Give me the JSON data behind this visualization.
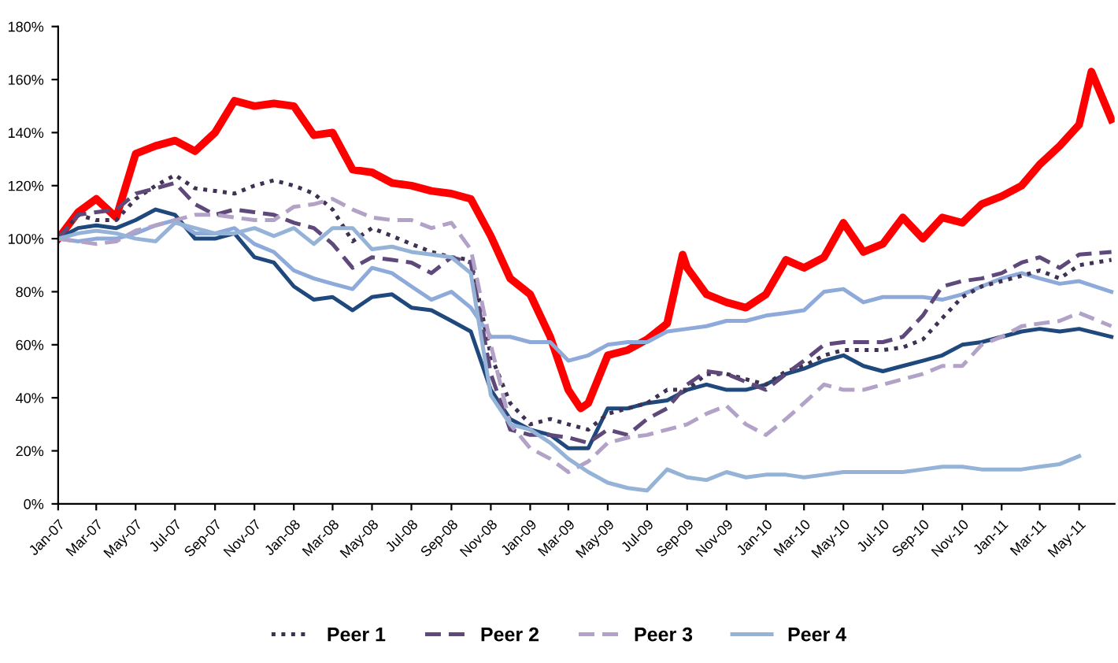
{
  "chart_data": {
    "type": "line",
    "x": [
      "2007-01",
      "2007-02",
      "2007-03",
      "2007-04",
      "2007-05",
      "2007-06",
      "2007-07",
      "2007-08",
      "2007-09",
      "2007-10",
      "2007-11",
      "2007-12",
      "2008-01",
      "2008-02",
      "2008-03",
      "2008-04",
      "2008-05",
      "2008-06",
      "2008-07",
      "2008-08",
      "2008-09",
      "2008-10",
      "2008-11",
      "2008-12",
      "2009-01",
      "2009-02",
      "2009-03",
      "2009-04",
      "2009-05",
      "2009-06",
      "2009-07",
      "2009-08",
      "2009-09",
      "2009-10",
      "2009-11",
      "2009-12",
      "2010-01",
      "2010-02",
      "2010-03",
      "2010-04",
      "2010-05",
      "2010-06",
      "2010-07",
      "2010-08",
      "2010-09",
      "2010-10",
      "2010-11",
      "2010-12",
      "2011-01",
      "2011-02",
      "2011-03",
      "2011-04",
      "2011-05",
      "2011-06-20"
    ],
    "series": [
      {
        "color": "#ff0000",
        "line_style": "solid",
        "x": [
          "2007-01",
          "2007-02",
          "2007-03",
          "2007-04",
          "2007-05",
          "2007-06",
          "2007-07",
          "2007-08",
          "2007-09",
          "2007-10",
          "2007-11",
          "2007-12",
          "2008-01",
          "2008-02",
          "2008-03",
          "2008-04",
          "2008-05",
          "2008-06",
          "2008-07",
          "2008-08",
          "2008-09",
          "2008-10",
          "2008-11",
          "2008-12",
          "2009-01",
          "2009-02",
          "2009-03",
          "2009-03-20",
          "2009-04",
          "2009-05",
          "2009-06",
          "2009-07",
          "2009-08",
          "2009-08-25",
          "2009-09",
          "2009-10",
          "2009-11",
          "2009-12",
          "2010-01",
          "2010-02",
          "2010-03",
          "2010-04",
          "2010-05",
          "2010-06",
          "2010-07",
          "2010-08",
          "2010-09",
          "2010-10",
          "2010-11",
          "2010-12",
          "2011-01",
          "2011-02",
          "2011-03",
          "2011-04",
          "2011-05",
          "2011-05-20",
          "2011-06-20"
        ],
        "values": [
          100,
          110,
          115,
          108,
          132,
          135,
          137,
          133,
          140,
          152,
          150,
          151,
          150,
          139,
          140,
          126,
          125,
          121,
          120,
          118,
          117,
          115,
          101,
          85,
          79,
          63,
          43,
          36,
          38,
          56,
          58,
          62,
          68,
          94,
          89,
          79,
          76,
          74,
          79,
          92,
          89,
          93,
          106,
          95,
          98,
          108,
          100,
          108,
          106,
          113,
          116,
          120,
          128,
          135,
          143,
          163,
          145
        ]
      },
      {
        "color": "#1f497d",
        "line_style": "solid",
        "values": [
          100,
          104,
          105,
          104,
          107,
          111,
          109,
          100,
          100,
          102,
          93,
          91,
          82,
          77,
          78,
          73,
          78,
          79,
          74,
          73,
          69,
          65,
          43,
          32,
          28,
          26,
          21,
          21,
          36,
          36,
          38,
          39,
          43,
          45,
          43,
          43,
          45,
          49,
          51,
          54,
          56,
          52,
          50,
          52,
          54,
          56,
          60,
          61,
          63,
          65,
          66,
          65,
          66,
          63
        ]
      },
      {
        "color": "#8eaadb",
        "line_style": "solid",
        "values": [
          100,
          99,
          100,
          100,
          102,
          105,
          107,
          102,
          102,
          104,
          98,
          95,
          88,
          85,
          83,
          81,
          89,
          87,
          82,
          77,
          80,
          74,
          63,
          63,
          61,
          61,
          54,
          56,
          60,
          61,
          61,
          65,
          66,
          67,
          69,
          69,
          71,
          72,
          73,
          80,
          81,
          76,
          78,
          78,
          78,
          77,
          79,
          82,
          85,
          87,
          85,
          83,
          84,
          80
        ]
      },
      {
        "name": "Peer 1",
        "color": "#3f3151",
        "line_style": "dotted",
        "values": [
          100,
          109,
          107,
          107,
          115,
          120,
          124,
          119,
          118,
          117,
          120,
          122,
          120,
          117,
          111,
          99,
          104,
          101,
          98,
          95,
          93,
          92,
          56,
          38,
          30,
          32,
          30,
          28,
          34,
          36,
          38,
          43,
          43,
          49,
          49,
          47,
          45,
          50,
          52,
          56,
          58,
          58,
          58,
          59,
          62,
          70,
          78,
          82,
          84,
          86,
          88,
          85,
          90,
          92
        ]
      },
      {
        "name": "Peer 2",
        "color": "#5f497a",
        "line_style": "dashed",
        "values": [
          100,
          109,
          110,
          111,
          117,
          119,
          121,
          113,
          109,
          111,
          110,
          109,
          106,
          104,
          98,
          89,
          93,
          92,
          91,
          87,
          93,
          91,
          49,
          28,
          26,
          26,
          25,
          23,
          28,
          26,
          32,
          36,
          45,
          50,
          49,
          46,
          43,
          49,
          54,
          60,
          61,
          61,
          61,
          63,
          71,
          82,
          84,
          85,
          87,
          91,
          93,
          89,
          94,
          95
        ]
      },
      {
        "name": "Peer 3",
        "color": "#b3a2c7",
        "line_style": "dashed",
        "values": [
          100,
          99,
          98,
          99,
          103,
          105,
          107,
          109,
          109,
          108,
          107,
          107,
          112,
          113,
          115,
          111,
          108,
          107,
          107,
          104,
          106,
          96,
          60,
          30,
          21,
          17,
          12,
          16,
          23,
          25,
          26,
          28,
          30,
          34,
          37,
          30,
          26,
          32,
          38,
          45,
          43,
          43,
          45,
          47,
          49,
          52,
          52,
          60,
          63,
          67,
          68,
          69,
          72,
          67
        ]
      },
      {
        "name": "Peer 4",
        "color": "#95b3d7",
        "line_style": "solid",
        "values": [
          100,
          102,
          103,
          102,
          100,
          99,
          106,
          104,
          102,
          102,
          104,
          101,
          104,
          98,
          104,
          104,
          96,
          97,
          95,
          94,
          93,
          87,
          41,
          30,
          28,
          23,
          17,
          12,
          8,
          6,
          5,
          13,
          10,
          9,
          12,
          10,
          11,
          11,
          10,
          11,
          12,
          12,
          12,
          12,
          13,
          14,
          14,
          13,
          13,
          13,
          14,
          15,
          18,
          null
        ]
      }
    ],
    "xlim": [
      "2007-01-01",
      "2011-06-25"
    ],
    "xticks": [
      {
        "value": "2007-01",
        "label": "Jan-07"
      },
      {
        "value": "2007-03",
        "label": "Mar-07"
      },
      {
        "value": "2007-05",
        "label": "May-07"
      },
      {
        "value": "2007-07",
        "label": "Jul-07"
      },
      {
        "value": "2007-09",
        "label": "Sep-07"
      },
      {
        "value": "2007-11",
        "label": "Nov-07"
      },
      {
        "value": "2008-01",
        "label": "Jan-08"
      },
      {
        "value": "2008-03",
        "label": "Mar-08"
      },
      {
        "value": "2008-05",
        "label": "May-08"
      },
      {
        "value": "2008-07",
        "label": "Jul-08"
      },
      {
        "value": "2008-09",
        "label": "Sep-08"
      },
      {
        "value": "2008-11",
        "label": "Nov-08"
      },
      {
        "value": "2009-01",
        "label": "Jan-09"
      },
      {
        "value": "2009-03",
        "label": "Mar-09"
      },
      {
        "value": "2009-05",
        "label": "May-09"
      },
      {
        "value": "2009-07",
        "label": "Jul-09"
      },
      {
        "value": "2009-09",
        "label": "Sep-09"
      },
      {
        "value": "2009-11",
        "label": "Nov-09"
      },
      {
        "value": "2010-01",
        "label": "Jan-10"
      },
      {
        "value": "2010-03",
        "label": "Mar-10"
      },
      {
        "value": "2010-05",
        "label": "May-10"
      },
      {
        "value": "2010-07",
        "label": "Jul-10"
      },
      {
        "value": "2010-09",
        "label": "Sep-10"
      },
      {
        "value": "2010-11",
        "label": "Nov-10"
      },
      {
        "value": "2011-01",
        "label": "Jan-11"
      },
      {
        "value": "2011-03",
        "label": "Mar-11"
      },
      {
        "value": "2011-05",
        "label": "May-11"
      }
    ],
    "ylim": [
      0,
      180
    ],
    "yticks": [
      {
        "value": 0,
        "label": "0%"
      },
      {
        "value": 20,
        "label": "20%"
      },
      {
        "value": 40,
        "label": "40%"
      },
      {
        "value": 60,
        "label": "60%"
      },
      {
        "value": 80,
        "label": "80%"
      },
      {
        "value": 100,
        "label": "100%"
      },
      {
        "value": 120,
        "label": "120%"
      },
      {
        "value": 140,
        "label": "140%"
      },
      {
        "value": 160,
        "label": "160%"
      },
      {
        "value": 180,
        "label": "180%"
      }
    ],
    "grid": false,
    "legend": "bottom"
  }
}
